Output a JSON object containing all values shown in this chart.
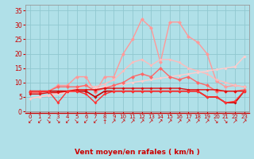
{
  "x": [
    0,
    1,
    2,
    3,
    4,
    5,
    6,
    7,
    8,
    9,
    10,
    11,
    12,
    13,
    14,
    15,
    16,
    17,
    18,
    19,
    20,
    21,
    22,
    23
  ],
  "series": [
    {
      "name": "rafales_max",
      "color": "#ff9999",
      "lw": 1.0,
      "marker": "D",
      "ms": 2.5,
      "values": [
        6.5,
        6.5,
        7,
        9,
        9,
        12,
        12,
        6.5,
        12,
        12,
        20,
        25,
        32,
        29,
        17,
        31,
        31,
        26,
        24,
        20,
        10.5,
        8.5,
        9,
        8.5
      ]
    },
    {
      "name": "vent_moyen_max_diag",
      "color": "#ffbbbb",
      "lw": 1.0,
      "marker": "D",
      "ms": 2.0,
      "values": [
        4.5,
        5,
        5.5,
        6.5,
        7,
        8,
        9,
        8.5,
        9.5,
        11,
        14,
        17,
        18,
        16,
        18,
        18,
        17,
        15,
        14,
        13,
        11,
        10,
        9,
        8.5
      ]
    },
    {
      "name": "vent_moyen_mean_diag",
      "color": "#ffcccc",
      "lw": 1.0,
      "marker": "D",
      "ms": 2.0,
      "values": [
        4.5,
        5,
        5.5,
        6,
        6.5,
        7,
        7.5,
        8,
        8.5,
        9,
        9.5,
        10,
        10.5,
        11,
        11.5,
        12,
        12.5,
        13,
        13.5,
        14,
        14.5,
        15,
        15.5,
        19
      ]
    },
    {
      "name": "rafales_mean",
      "color": "#ff6666",
      "lw": 1.0,
      "marker": "D",
      "ms": 2.5,
      "values": [
        6.5,
        6.5,
        7,
        8.5,
        8.5,
        8.5,
        9,
        7,
        8,
        9,
        10,
        12,
        13,
        12,
        15,
        12,
        11,
        12,
        10,
        9,
        7,
        7,
        7,
        7.5
      ]
    },
    {
      "name": "vent_flat1",
      "color": "#cc0000",
      "lw": 1.2,
      "marker": "D",
      "ms": 2.0,
      "values": [
        7,
        7,
        7,
        7,
        7,
        7,
        7,
        5,
        7,
        7,
        7,
        7,
        7,
        7,
        7,
        7,
        7,
        7,
        7,
        5,
        5,
        3,
        3,
        7
      ]
    },
    {
      "name": "vent_flat2",
      "color": "#dd1111",
      "lw": 1.0,
      "marker": "D",
      "ms": 2.0,
      "values": [
        6,
        6,
        6.5,
        6.5,
        7,
        7.5,
        7.5,
        7.5,
        8,
        8,
        8,
        8,
        8,
        8,
        8,
        8,
        8,
        7.5,
        7.5,
        7.5,
        7.5,
        7,
        7,
        7
      ]
    },
    {
      "name": "vent_flat3",
      "color": "#ff3333",
      "lw": 1.0,
      "marker": "D",
      "ms": 2.0,
      "values": [
        7,
        7,
        7,
        3,
        7,
        7,
        6,
        3,
        6,
        7,
        7,
        7,
        7,
        7,
        7,
        7,
        7,
        7,
        7,
        5,
        5,
        3,
        3.5,
        7
      ]
    }
  ],
  "arrows": [
    "↙",
    "↙",
    "↘",
    "↘",
    "↙",
    "↘",
    "↙",
    "↙",
    "↑",
    "↗",
    "↗",
    "↗",
    "↗",
    "↗",
    "↗",
    "↗",
    "↗",
    "↗",
    "↗",
    "↗",
    "↘",
    "↘",
    "↗",
    "↗"
  ],
  "xlabel": "Vent moyen/en rafales ( km/h )",
  "xlim": [
    -0.5,
    23.5
  ],
  "ylim": [
    0,
    37
  ],
  "yticks": [
    0,
    5,
    10,
    15,
    20,
    25,
    30,
    35
  ],
  "xticks": [
    0,
    1,
    2,
    3,
    4,
    5,
    6,
    7,
    8,
    9,
    10,
    11,
    12,
    13,
    14,
    15,
    16,
    17,
    18,
    19,
    20,
    21,
    22,
    23
  ],
  "bg_color": "#b0e0e8",
  "grid_color": "#90c8d0",
  "text_color": "#cc0000",
  "spine_color": "#999999"
}
